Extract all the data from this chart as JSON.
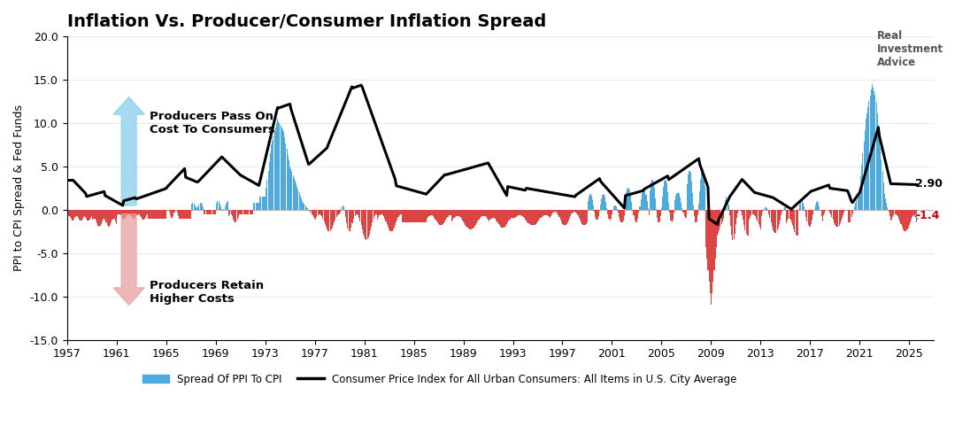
{
  "title": "Inflation Vs. Producer/Consumer Inflation Spread",
  "ylabel": "PPI to CPI Spread & Fed Funds",
  "xlim": [
    1957,
    2027
  ],
  "ylim": [
    -15.0,
    20.0
  ],
  "yticks": [
    -15.0,
    -10.0,
    -5.0,
    0.0,
    5.0,
    10.0,
    15.0,
    20.0
  ],
  "xticks": [
    1957,
    1961,
    1965,
    1969,
    1973,
    1977,
    1981,
    1985,
    1989,
    1993,
    1997,
    2001,
    2005,
    2009,
    2013,
    2017,
    2021,
    2025
  ],
  "bar_color_pos": "#4daadd",
  "bar_color_neg": "#dd4444",
  "line_color": "#000000",
  "line_width": 2.2,
  "annotation_end_value": "2.90",
  "annotation_end_color": "#000000",
  "annotation_last_bar": "-1.4",
  "annotation_last_bar_color": "#cc0000",
  "text_pass_on": "Producers Pass On\nCost To Consumers",
  "text_retain": "Producers Retain\nHigher Costs",
  "background_color": "#ffffff",
  "legend_bar_label": "Spread Of PPI To CPI",
  "legend_line_label": "Consumer Price Index for All Urban Consumers: All Items in U.S. City Average",
  "watermark": "Real\nInvestment\nAdvice",
  "arrow_up_color": "#87CEEB",
  "arrow_dn_color": "#E8A0A0"
}
